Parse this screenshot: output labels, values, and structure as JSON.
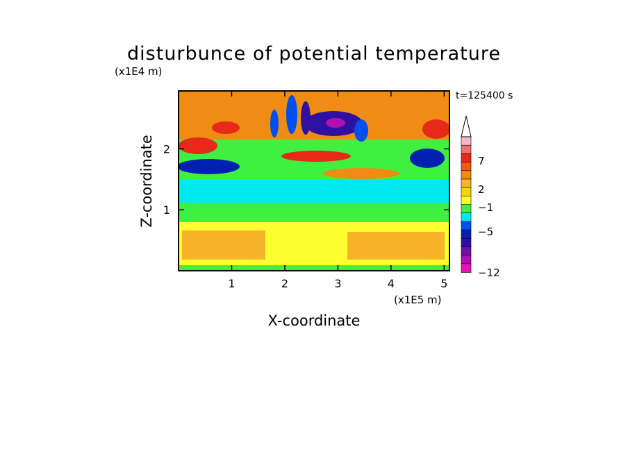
{
  "chart_data": {
    "type": "heatmap",
    "title": "disturbunce of potential temperature",
    "time_label": "t=125400 s",
    "xlabel": "X-coordinate",
    "ylabel": "Z-coordinate",
    "x_unit": "(x1E5 m)",
    "y_unit": "(x1E4 m)",
    "xlim": [
      0,
      5.1
    ],
    "ylim": [
      0,
      2.95
    ],
    "x_ticks": [
      "1",
      "2",
      "3",
      "4",
      "5"
    ],
    "y_ticks": [
      "1",
      "2"
    ],
    "x_tick_values": [
      1,
      2,
      3,
      4,
      5
    ],
    "y_tick_values": [
      1,
      2
    ],
    "colorbar": {
      "labels": [
        "7",
        "2",
        "−1",
        "−5",
        "−12"
      ],
      "colors": [
        "#f5b8c8",
        "#f07070",
        "#e82818",
        "#f05a10",
        "#f08c14",
        "#f8b428",
        "#f0d800",
        "#ffff30",
        "#40f040",
        "#00e8f0",
        "#0050f0",
        "#0020b0",
        "#3010a0",
        "#7010a0",
        "#b010b0",
        "#e810b8"
      ],
      "extend": "max"
    }
  }
}
